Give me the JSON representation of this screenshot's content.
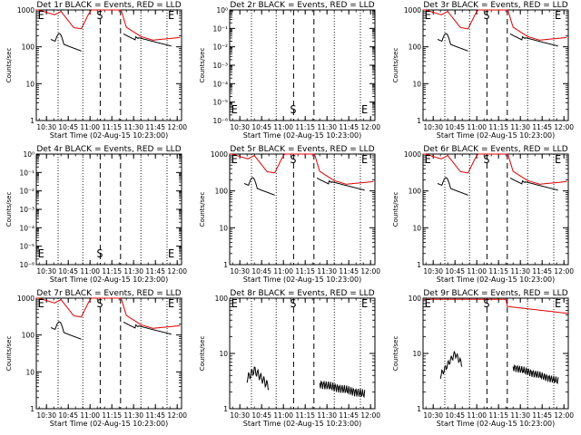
{
  "chart_data": [
    {
      "type": "line",
      "panel": "1r",
      "title": "Det 1r BLACK = Events, RED = LLD",
      "xlabel": "Start Time (02-Aug-15 10:23:00)",
      "ylabel": "Counts/sec",
      "ylim_log10": [
        0,
        3
      ],
      "yticks": [
        "1",
        "10",
        "100",
        "1000"
      ],
      "markers": {
        "E1": "E",
        "S": "S",
        "E2": "E"
      },
      "black_scale": 0.36,
      "red_visible_from": 0
    },
    {
      "type": "line",
      "panel": "2r",
      "title": "Det 2r BLACK = Events, RED = LLD",
      "xlabel": "Start Time (02-Aug-15 10:23:00)",
      "ylabel": "Counts/sec",
      "ylim_log10": [
        -6,
        0
      ],
      "yticks": [
        "10⁻⁶",
        "10⁻⁵",
        "10⁻⁴",
        "10⁻³",
        "10⁻²",
        "10⁻¹",
        "10⁰"
      ],
      "markers": {
        "E1": "E",
        "S": "S",
        "E2": "E"
      },
      "empty": true
    },
    {
      "type": "line",
      "panel": "3r",
      "title": "Det 3r BLACK = Events, RED = LLD",
      "xlabel": "Start Time (02-Aug-15 10:23:00)",
      "ylabel": "Counts/sec",
      "ylim_log10": [
        0,
        3
      ],
      "yticks": [
        "1",
        "10",
        "100",
        "1000"
      ],
      "markers": {
        "E1": "E",
        "S": "S",
        "E2": "E"
      },
      "black_scale": 0.32,
      "red_visible_from": 0
    },
    {
      "type": "line",
      "panel": "4r",
      "title": "Det 4r BLACK = Events, RED = LLD",
      "xlabel": "Start Time (02-Aug-15 10:23:00)",
      "ylabel": "Counts/sec",
      "ylim_log10": [
        -6,
        0
      ],
      "yticks": [
        "10⁻⁶",
        "10⁻⁵",
        "10⁻⁴",
        "10⁻³",
        "10⁻²",
        "10⁻¹",
        "10⁰"
      ],
      "markers": {
        "E1": "E",
        "S": "S",
        "E2": "E"
      },
      "empty": true
    },
    {
      "type": "line",
      "panel": "5r",
      "title": "Det 5r BLACK = Events, RED = LLD",
      "xlabel": "Start Time (02-Aug-15 10:23:00)",
      "ylabel": "Counts/sec",
      "ylim_log10": [
        0,
        3
      ],
      "yticks": [
        "1",
        "10",
        "100",
        "1000"
      ],
      "markers": {
        "E1": "E",
        "S": "S",
        "E2": "E"
      },
      "black_scale": 0.38,
      "red_visible_from": 0
    },
    {
      "type": "line",
      "panel": "6r",
      "title": "Det 6r BLACK = Events, RED = LLD",
      "xlabel": "Start Time (02-Aug-15 10:23:00)",
      "ylabel": "Counts/sec",
      "ylim_log10": [
        0,
        3
      ],
      "yticks": [
        "1",
        "10",
        "100",
        "1000"
      ],
      "markers": {
        "E1": "E",
        "S": "S",
        "E2": "E"
      },
      "black_scale": 0.32,
      "red_visible_from": 0
    },
    {
      "type": "line",
      "panel": "7r",
      "title": "Det 7r BLACK = Events, RED = LLD",
      "xlabel": "Start Time (02-Aug-15 10:23:00)",
      "ylabel": "Counts/sec",
      "ylim_log10": [
        0,
        3
      ],
      "yticks": [
        "1",
        "10",
        "100",
        "1000"
      ],
      "markers": {
        "E1": "E",
        "S": "S",
        "E2": "E"
      },
      "black_scale": 0.34,
      "red_visible_from": 0
    },
    {
      "type": "line",
      "panel": "8r",
      "title": "Det 8r BLACK = Events, RED = LLD",
      "xlabel": "Start Time (02-Aug-15 10:23:00)",
      "ylabel": "Counts/sec",
      "ylim_log10": [
        0,
        2
      ],
      "yticks": [
        "1",
        "10",
        "100"
      ],
      "markers": {
        "E1": "E",
        "S": "S",
        "E2": "E"
      },
      "black_kind": "low"
    },
    {
      "type": "line",
      "panel": "9r",
      "title": "Det 9r BLACK = Events, RED = LLD",
      "xlabel": "Start Time (02-Aug-15 10:23:00)",
      "ylabel": "Counts/sec",
      "ylim_log10": [
        0,
        2
      ],
      "yticks": [
        "1",
        "10",
        "100"
      ],
      "markers": {
        "E1": "E",
        "S": "S",
        "E2": "E"
      },
      "black_kind": "low2",
      "red_kind": "top"
    }
  ],
  "shared": {
    "xticks": [
      "10:30",
      "10:45",
      "11:00",
      "11:15",
      "11:30",
      "11:45",
      "12:00"
    ],
    "x_minutes_from_start": [
      7,
      22,
      37,
      52,
      67,
      82,
      97
    ],
    "x_range_minutes": [
      0,
      100
    ],
    "dotted_lines_minutes": [
      15,
      32,
      72,
      90
    ],
    "dashed_lines_minutes": [
      44,
      58
    ],
    "marker_positions_minutes": {
      "E1": 1,
      "S": 44,
      "E2": 90
    },
    "colors": {
      "events": "#000000",
      "lld": "#e00000"
    }
  }
}
